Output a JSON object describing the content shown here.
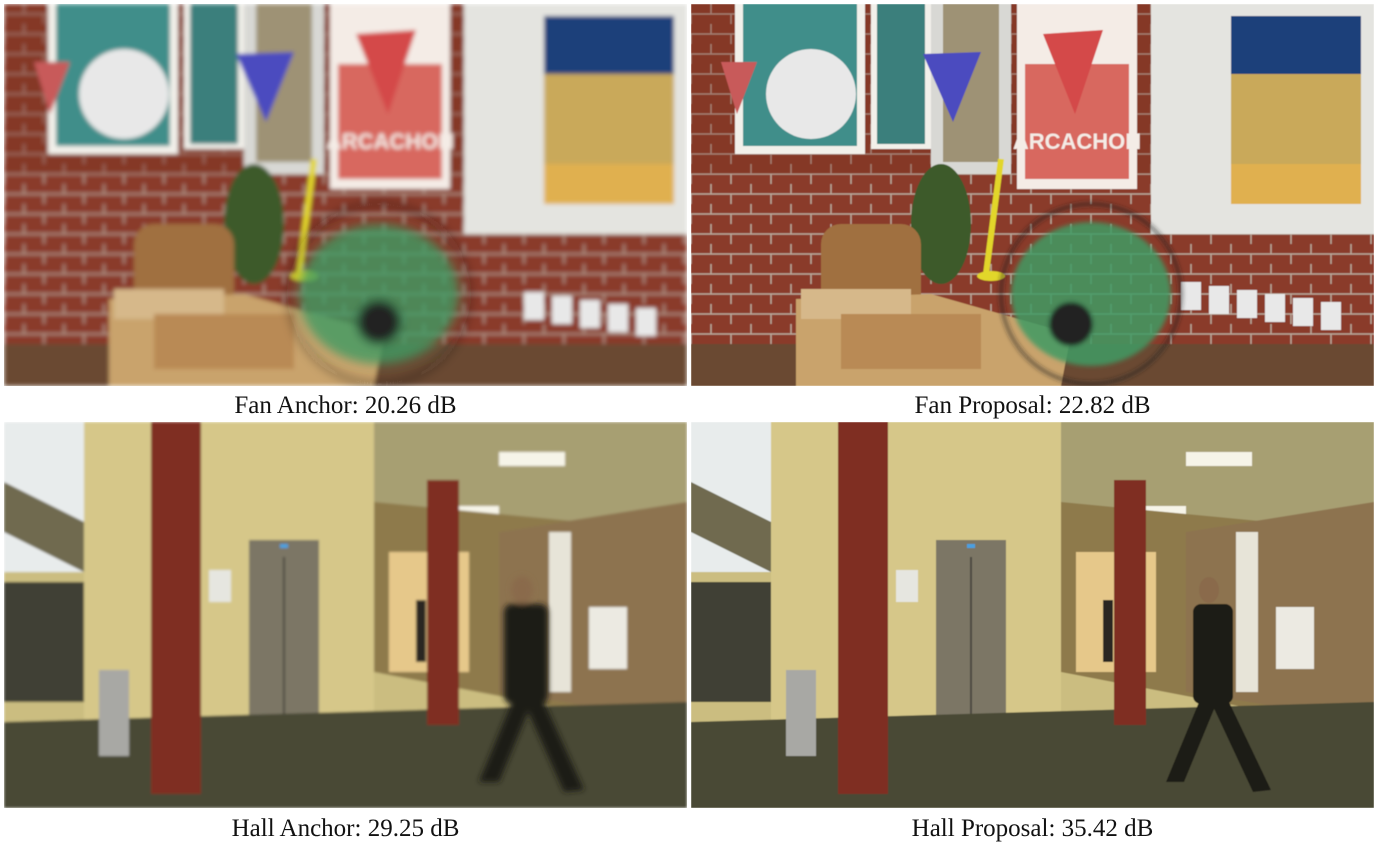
{
  "figure": {
    "panels": [
      {
        "id": "fan-anchor",
        "caption": "Fan Anchor: 20.26 dB",
        "scene": "fan",
        "blurred": true,
        "psnr_db": 20.26
      },
      {
        "id": "fan-proposal",
        "caption": "Fan Proposal: 22.82 dB",
        "scene": "fan",
        "blurred": false,
        "psnr_db": 22.82
      },
      {
        "id": "hall-anchor",
        "caption": "Hall Anchor: 29.25 dB",
        "scene": "hall",
        "blurred": true,
        "psnr_db": 29.25
      },
      {
        "id": "hall-proposal",
        "caption": "Hall Proposal: 35.42 dB",
        "scene": "hall",
        "blurred": false,
        "psnr_db": 35.42
      }
    ],
    "colors": {
      "brick": "#8a3b2a",
      "poster_red": "#d8675f",
      "fan_blade": "#3f9a63",
      "lamp": "#e2d62a",
      "wall_cream": "#d6c789",
      "pillar": "#7f2f20",
      "floor": "#4a4a36"
    }
  }
}
